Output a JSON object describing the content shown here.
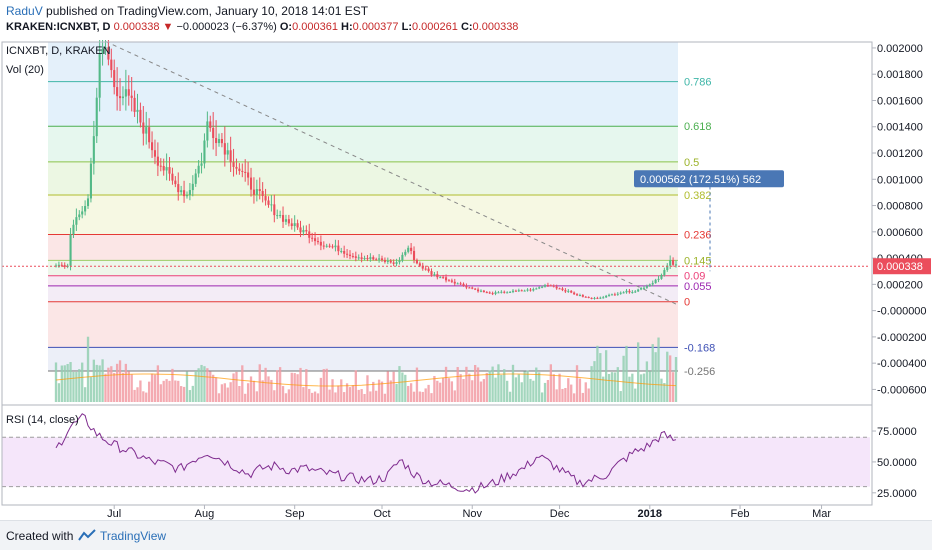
{
  "header": {
    "author": "RaduV",
    "published": "published on TradingView.com, January 10, 2018 14:01 EST",
    "symbol": "KRAKEN:ICNXBT, D",
    "last": "0.000338",
    "change": "−0.000023 (−6.37%)",
    "open_label": "O:",
    "open": "0.000361",
    "high_label": "H:",
    "high": "0.000377",
    "low_label": "L:",
    "low": "0.000261",
    "close_label": "C:",
    "close": "0.000338"
  },
  "footer": {
    "created": "Created with",
    "brand": "TradingView"
  },
  "colors": {
    "up": "#53b987",
    "down": "#eb4d5c",
    "rsi": "#7e2b8e",
    "vol_up": "#93cfb1",
    "vol_down": "#f29ba3",
    "price_tag": "#eb4d5c",
    "measure": "#4a77b5"
  },
  "chart_data": [
    {
      "type": "candlestick",
      "pane_title": "ICNXBT, D, KRAKEN",
      "volume_label": "Vol (20)",
      "x_ticks": [
        "Jul",
        "Aug",
        "Sep",
        "Oct",
        "Nov",
        "Dec",
        "2018",
        "Feb",
        "Mar"
      ],
      "y_ticks": [
        "0.002000",
        "0.001800",
        "0.001600",
        "0.001400",
        "0.001200",
        "0.001000",
        "0.000800",
        "0.000600",
        "0.000400",
        "0.000200",
        "-0.000000",
        "-0.000200",
        "-0.000400",
        "-0.000600"
      ],
      "ylim": [
        -0.00065,
        0.00203
      ],
      "last_price_tag": "0.000338",
      "measure_label": "0.000562 (172.51%) 562",
      "fibonacci": [
        {
          "level": "0.786",
          "price": 0.001744
        },
        {
          "level": "0.618",
          "price": 0.001404
        },
        {
          "level": "0.5",
          "price": 0.001133
        },
        {
          "level": "0.382",
          "price": 0.00088
        },
        {
          "level": "0.236",
          "price": 0.00058
        },
        {
          "level": "0.145",
          "price": 0.000383
        },
        {
          "level": "0.09",
          "price": 0.000266
        },
        {
          "level": "0.055",
          "price": 0.000188
        },
        {
          "level": "0",
          "price": 6.8e-05
        },
        {
          "level": "-0.168",
          "price": -0.00028
        },
        {
          "level": "-0.256",
          "price": -0.00046
        }
      ],
      "price_series": {
        "x_unit": "approximate date",
        "points": [
          [
            "Jun 16",
            0.0006
          ],
          [
            "Jun 22",
            0.00085
          ],
          [
            "Jun 26",
            0.0019
          ],
          [
            "Jun 28",
            0.002
          ],
          [
            "Jul 1",
            0.00172
          ],
          [
            "Jul 6",
            0.0016
          ],
          [
            "Jul 11",
            0.0014
          ],
          [
            "Jul 16",
            0.00115
          ],
          [
            "Jul 21",
            0.00098
          ],
          [
            "Jul 26",
            0.00088
          ],
          [
            "Jul 31",
            0.00115
          ],
          [
            "Aug 2",
            0.00142
          ],
          [
            "Aug 7",
            0.00128
          ],
          [
            "Aug 12",
            0.0011
          ],
          [
            "Aug 17",
            0.00095
          ],
          [
            "Aug 22",
            0.00082
          ],
          [
            "Aug 27",
            0.00072
          ],
          [
            "Sep 1",
            0.00064
          ],
          [
            "Sep 6",
            0.00058
          ],
          [
            "Sep 11",
            0.0005
          ],
          [
            "Sep 16",
            0.00047
          ],
          [
            "Sep 21",
            0.00042
          ],
          [
            "Sep 26",
            0.0004
          ],
          [
            "Oct 1",
            0.00038
          ],
          [
            "Oct 6",
            0.00036
          ],
          [
            "Oct 10",
            0.00048
          ],
          [
            "Oct 13",
            0.00036
          ],
          [
            "Oct 18",
            0.00028
          ],
          [
            "Oct 23",
            0.00024
          ],
          [
            "Oct 28",
            0.0002
          ],
          [
            "Nov 2",
            0.00016
          ],
          [
            "Nov 7",
            0.00013
          ],
          [
            "Nov 12",
            0.00014
          ],
          [
            "Nov 17",
            0.00015
          ],
          [
            "Nov 22",
            0.00016
          ],
          [
            "Nov 27",
            0.0002
          ],
          [
            "Dec 2",
            0.00016
          ],
          [
            "Dec 7",
            0.00012
          ],
          [
            "Dec 12",
            9e-05
          ],
          [
            "Dec 17",
            0.00011
          ],
          [
            "Dec 22",
            0.00014
          ],
          [
            "Dec 27",
            0.00015
          ],
          [
            "Jan 1",
            0.0002
          ],
          [
            "Jan 5",
            0.00027
          ],
          [
            "Jan 8",
            0.00037
          ],
          [
            "Jan 10",
            0.00034
          ]
        ]
      }
    },
    {
      "type": "line",
      "pane_title": "RSI (14, close)",
      "y_ticks": [
        "75.0000",
        "50.0000",
        "25.0000"
      ],
      "ylim": [
        20,
        92
      ],
      "bands": [
        70,
        30
      ],
      "series": [
        {
          "values": [
            60,
            78,
            86,
            72,
            65,
            60,
            55,
            50,
            48,
            44,
            52,
            58,
            52,
            46,
            40,
            45,
            47,
            43,
            45,
            42,
            40,
            38,
            36,
            35,
            38,
            52,
            40,
            34,
            32,
            30,
            28,
            30,
            34,
            40,
            45,
            55,
            48,
            40,
            33,
            36,
            40,
            50,
            58,
            63,
            72,
            67
          ]
        }
      ]
    }
  ]
}
